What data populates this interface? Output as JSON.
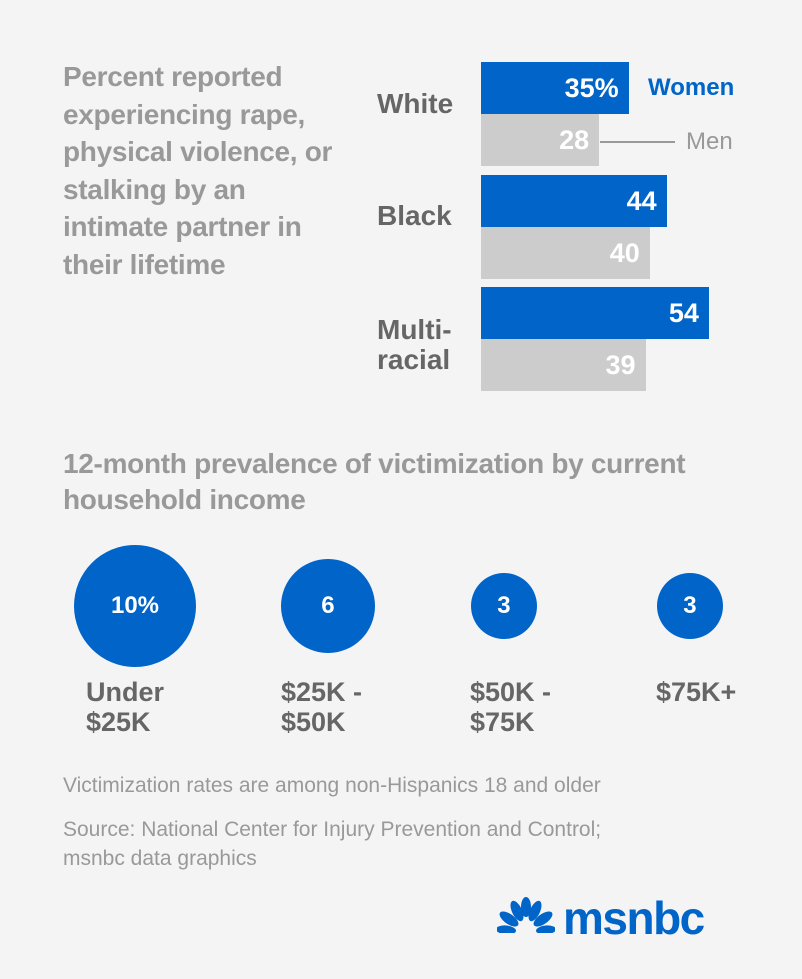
{
  "chart_data": [
    {
      "type": "bar",
      "orientation": "horizontal",
      "title": "Percent reported experiencing rape, physical violence, or stalking by an intimate partner in their lifetime",
      "categories": [
        "White",
        "Black",
        "Multi-racial"
      ],
      "category_labels": [
        [
          "White"
        ],
        [
          "Black"
        ],
        [
          "Multi-",
          "racial"
        ]
      ],
      "series": [
        {
          "name": "Women",
          "values": [
            35,
            44,
            54
          ],
          "labels": [
            "35%",
            "44",
            "54"
          ],
          "color": "#0064c8"
        },
        {
          "name": "Men",
          "values": [
            28,
            40,
            39
          ],
          "labels": [
            "28",
            "40",
            "39"
          ],
          "color": "#cccccc"
        }
      ],
      "xlim": [
        0,
        60
      ],
      "grid": false,
      "legend": "right (Women beside first blue bar, Men with leader line beside first gray bar)"
    },
    {
      "type": "bubble",
      "title": "12-month prevalence of victimization by current household income",
      "categories": [
        "Under $25K",
        "$25K - $50K",
        "$50K - $75K",
        "$75K+"
      ],
      "category_labels": [
        [
          "Under",
          "$25K"
        ],
        [
          "$25K -",
          "$50K"
        ],
        [
          "$50K -",
          "$75K"
        ],
        [
          "$75K+"
        ]
      ],
      "values": [
        10,
        6,
        3,
        3
      ],
      "labels": [
        "10%",
        "6",
        "3",
        "3"
      ],
      "color": "#0064c8",
      "size_encoding": "area proportional to value"
    }
  ],
  "notes": {
    "footnote": "Victimization rates are among non-Hispanics 18 and older",
    "source_line1": "Source: National Center for Injury Prevention and Control;",
    "source_line2": "msnbc data graphics"
  },
  "logo": {
    "text": "msnbc",
    "icon": "peacock-icon",
    "color": "#0064c8"
  }
}
